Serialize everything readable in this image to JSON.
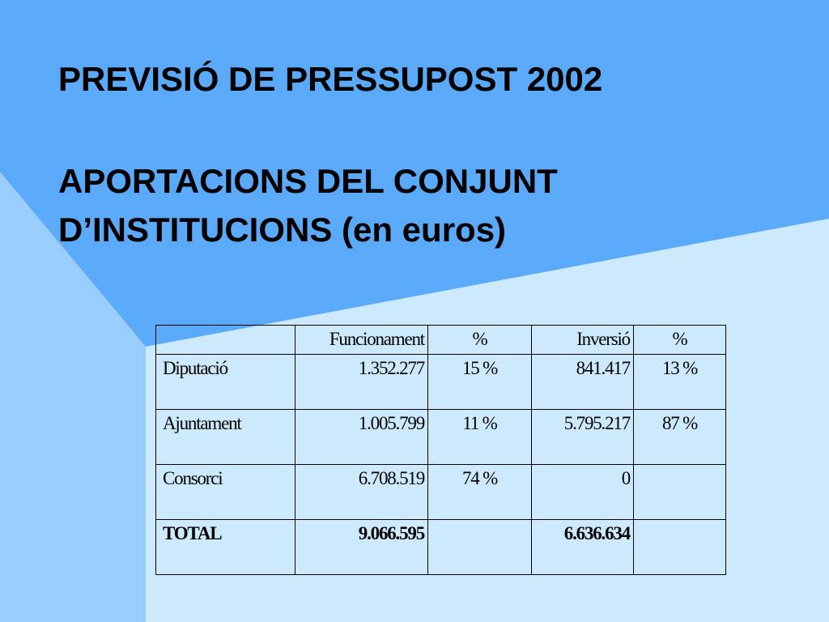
{
  "slide": {
    "title_line1": "PREVISIÓ DE PRESSUPOST 2002",
    "title_line2": "APORTACIONS DEL CONJUNT",
    "title_line3": "D’INSTITUCIONS (en euros)",
    "colors": {
      "background_dark": "#5aaaf9",
      "background_mid": "#99cdfb",
      "background_light": "#cde9fc",
      "text": "#000000"
    }
  },
  "table": {
    "headers": {
      "entity": "",
      "funcionament": "Funcionament",
      "funcionament_pct": "%",
      "inversio": "Inversió",
      "inversio_pct": "%"
    },
    "rows": [
      {
        "entity": "Diputació",
        "funcionament": "1.352.277",
        "funcionament_pct": "15 %",
        "inversio": "841.417",
        "inversio_pct": "13 %"
      },
      {
        "entity": "Ajuntament",
        "funcionament": "1.005.799",
        "funcionament_pct": "11 %",
        "inversio": "5.795.217",
        "inversio_pct": "87 %"
      },
      {
        "entity": "Consorci",
        "funcionament": "6.708.519",
        "funcionament_pct": "74 %",
        "inversio": "0",
        "inversio_pct": ""
      }
    ],
    "total": {
      "entity": "TOTAL",
      "funcionament": "9.066.595",
      "funcionament_pct": "",
      "inversio": "6.636.634",
      "inversio_pct": ""
    }
  }
}
